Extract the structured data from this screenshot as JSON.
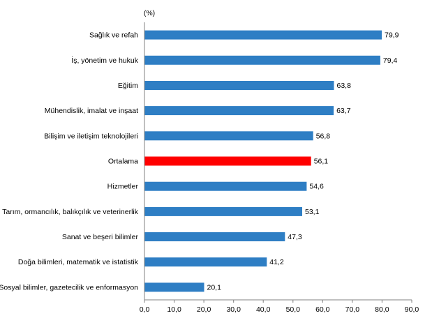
{
  "chart_data": {
    "type": "bar",
    "orientation": "horizontal",
    "unit_label": "(%)",
    "categories": [
      "Sağlık ve refah",
      "İş, yönetim ve hukuk",
      "Eğitim",
      "Mühendislik, imalat ve inşaat",
      "Bilişim ve iletişim teknolojileri",
      "Ortalama",
      "Hizmetler",
      "Tarım, ormancılık, balıkçılık ve veterinerlik",
      "Sanat ve beşeri bilimler",
      "Doğa bilimleri, matematik ve istatistik",
      "Sosyal bilimler, gazetecilik ve enformasyon"
    ],
    "values": [
      79.9,
      79.4,
      63.8,
      63.7,
      56.8,
      56.1,
      54.6,
      53.1,
      47.3,
      41.2,
      20.1
    ],
    "value_labels": [
      "79,9",
      "79,4",
      "63,8",
      "63,7",
      "56,8",
      "56,1",
      "54,6",
      "53,1",
      "47,3",
      "41,2",
      "20,1"
    ],
    "highlight_category": "Ortalama",
    "xlim": [
      0,
      90
    ],
    "x_ticks": [
      0,
      10,
      20,
      30,
      40,
      50,
      60,
      70,
      80,
      90
    ],
    "x_tick_labels": [
      "0,0",
      "10,0",
      "20,0",
      "30,0",
      "40,0",
      "50,0",
      "60,0",
      "70,0",
      "80,0",
      "90,0"
    ],
    "grid": false,
    "colors": {
      "bar": "#2E7EC4",
      "highlight": "#FF0000",
      "axis": "#808080"
    }
  }
}
